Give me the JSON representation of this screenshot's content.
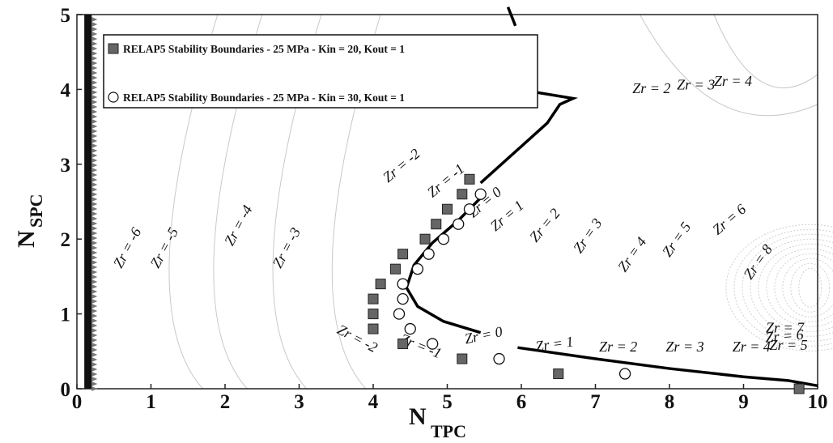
{
  "chart_data": {
    "type": "scatter",
    "title": "",
    "xlabel": "N",
    "xlabel_sub": "TPC",
    "ylabel": "N",
    "ylabel_sub": "SPC",
    "xlim": [
      0,
      10
    ],
    "ylim": [
      0,
      5
    ],
    "xticks": [
      "0",
      "1",
      "2",
      "3",
      "4",
      "5",
      "6",
      "7",
      "8",
      "9",
      "10"
    ],
    "yticks": [
      "0",
      "1",
      "2",
      "3",
      "4",
      "5"
    ],
    "grid": false,
    "legend_position": "top-left",
    "series": [
      {
        "name": "RELAP5 Stability Boundaries - 25 MPa - Kin = 20, Kout = 1",
        "marker": "filled-square",
        "color": "#555555",
        "points": [
          [
            4.0,
            0.8
          ],
          [
            4.4,
            0.6
          ],
          [
            5.2,
            0.4
          ],
          [
            6.5,
            0.2
          ],
          [
            9.75,
            0.0
          ],
          [
            4.0,
            1.0
          ],
          [
            4.0,
            1.2
          ],
          [
            4.1,
            1.4
          ],
          [
            4.3,
            1.6
          ],
          [
            4.4,
            1.8
          ],
          [
            4.7,
            2.0
          ],
          [
            4.85,
            2.2
          ],
          [
            5.0,
            2.4
          ],
          [
            5.2,
            2.6
          ],
          [
            5.3,
            2.8
          ]
        ]
      },
      {
        "name": "RELAP5 Stability Boundaries - 25 MPa - Kin = 30, Kout = 1",
        "marker": "open-circle",
        "color": "#111111",
        "points": [
          [
            4.5,
            0.8
          ],
          [
            4.8,
            0.6
          ],
          [
            5.7,
            0.4
          ],
          [
            7.4,
            0.2
          ],
          [
            4.35,
            1.0
          ],
          [
            4.4,
            1.2
          ],
          [
            4.4,
            1.4
          ],
          [
            4.6,
            1.6
          ],
          [
            4.75,
            1.8
          ],
          [
            4.95,
            2.0
          ],
          [
            5.15,
            2.2
          ],
          [
            5.3,
            2.4
          ],
          [
            5.45,
            2.6
          ]
        ]
      }
    ],
    "boundary_curve": [
      [
        5.45,
        2.75
      ],
      [
        5.9,
        3.15
      ],
      [
        6.35,
        3.55
      ],
      [
        6.52,
        3.8
      ],
      [
        6.7,
        3.88
      ],
      [
        5.35,
        4.1
      ]
    ],
    "boundary_curve_top": [
      [
        5.82,
        5.1
      ],
      [
        5.92,
        4.85
      ]
    ],
    "boundary_curve_lower": [
      [
        5.45,
        0.75
      ],
      [
        4.95,
        0.9
      ],
      [
        4.6,
        1.1
      ],
      [
        4.45,
        1.35
      ],
      [
        4.55,
        1.65
      ],
      [
        4.8,
        1.95
      ],
      [
        5.15,
        2.25
      ],
      [
        5.45,
        2.55
      ]
    ],
    "boundary_curve_bottom": [
      [
        5.95,
        0.55
      ],
      [
        7.0,
        0.4
      ],
      [
        8.0,
        0.27
      ],
      [
        9.0,
        0.16
      ],
      [
        9.6,
        0.11
      ],
      [
        10.0,
        0.04
      ]
    ],
    "annotations": [
      {
        "text": "Zr = -6",
        "x": 0.6,
        "y": 1.6,
        "angle": -62
      },
      {
        "text": "Zr = -5",
        "x": 1.1,
        "y": 1.6,
        "angle": -62
      },
      {
        "text": "Zr = -4",
        "x": 2.1,
        "y": 1.9,
        "angle": -62
      },
      {
        "text": "Zr = -3",
        "x": 2.75,
        "y": 1.6,
        "angle": -62
      },
      {
        "text": "Zr = -2",
        "x": 4.2,
        "y": 2.75,
        "angle": -40
      },
      {
        "text": "Zr = -1",
        "x": 4.8,
        "y": 2.55,
        "angle": -40
      },
      {
        "text": "Zr = 0",
        "x": 5.35,
        "y": 2.28,
        "angle": -40
      },
      {
        "text": "Zr = 1",
        "x": 5.65,
        "y": 2.1,
        "angle": -40
      },
      {
        "text": "Zr = 2",
        "x": 6.2,
        "y": 1.95,
        "angle": -50
      },
      {
        "text": "Zr = 3",
        "x": 6.8,
        "y": 1.8,
        "angle": -55
      },
      {
        "text": "Zr = 4",
        "x": 7.4,
        "y": 1.55,
        "angle": -55
      },
      {
        "text": "Zr = 5",
        "x": 8.0,
        "y": 1.75,
        "angle": -55
      },
      {
        "text": "Zr = 6",
        "x": 8.65,
        "y": 2.05,
        "angle": -40
      },
      {
        "text": "Zr = 8",
        "x": 9.1,
        "y": 1.45,
        "angle": -55
      },
      {
        "text": "Zr = -2",
        "x": 3.5,
        "y": 0.75,
        "angle": 28
      },
      {
        "text": "Zr = -1",
        "x": 4.35,
        "y": 0.62,
        "angle": 22
      },
      {
        "text": "Zr = 0",
        "x": 5.25,
        "y": 0.6,
        "angle": -12
      },
      {
        "text": "Zr = 1",
        "x": 6.2,
        "y": 0.5,
        "angle": -8
      },
      {
        "text": "Zr = 2",
        "x": 7.05,
        "y": 0.5,
        "angle": 0
      },
      {
        "text": "Zr = 3",
        "x": 7.95,
        "y": 0.5,
        "angle": 0
      },
      {
        "text": "Zr = 4",
        "x": 8.85,
        "y": 0.5,
        "angle": 0
      },
      {
        "text": "Zr = 5",
        "x": 9.35,
        "y": 0.52,
        "angle": 0
      },
      {
        "text": "Zr = 6",
        "x": 9.3,
        "y": 0.62,
        "angle": -5
      },
      {
        "text": "Zr = 7",
        "x": 9.3,
        "y": 0.75,
        "angle": 0
      },
      {
        "text": "Zr = 2",
        "x": 7.5,
        "y": 3.95,
        "angle": 0
      },
      {
        "text": "Zr = 3",
        "x": 8.1,
        "y": 4.0,
        "angle": 0
      },
      {
        "text": "Zr = 4",
        "x": 8.6,
        "y": 4.05,
        "angle": 0
      }
    ]
  }
}
